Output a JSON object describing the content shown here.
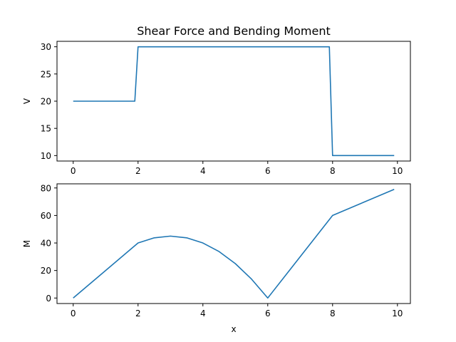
{
  "figure": {
    "title": "Shear Force and Bending Moment"
  },
  "chart_data": [
    {
      "type": "line",
      "ylabel": "V",
      "xlabel": "",
      "xlim": [
        -0.5,
        10.4
      ],
      "ylim": [
        9,
        31
      ],
      "xticks": [
        0,
        2,
        4,
        6,
        8,
        10
      ],
      "yticks": [
        10,
        15,
        20,
        25,
        30
      ],
      "grid": false,
      "series": [
        {
          "color": "#1f77b4",
          "x": [
            0,
            1.9,
            2.0,
            7.9,
            8.0,
            9.9
          ],
          "y": [
            20,
            20,
            30,
            30,
            10,
            10
          ]
        }
      ]
    },
    {
      "type": "line",
      "ylabel": "M",
      "xlabel": "x",
      "xlim": [
        -0.5,
        10.4
      ],
      "ylim": [
        -4,
        83
      ],
      "xticks": [
        0,
        2,
        4,
        6,
        8,
        10
      ],
      "yticks": [
        0,
        20,
        40,
        60,
        80
      ],
      "grid": false,
      "series": [
        {
          "color": "#1f77b4",
          "x": [
            0,
            2,
            2.5,
            3,
            3.5,
            4,
            4.5,
            5,
            5.5,
            6,
            8,
            9.9
          ],
          "y": [
            0,
            40,
            43.75,
            45,
            43.75,
            40,
            33.75,
            25,
            13.75,
            0,
            60,
            79
          ]
        }
      ]
    }
  ]
}
